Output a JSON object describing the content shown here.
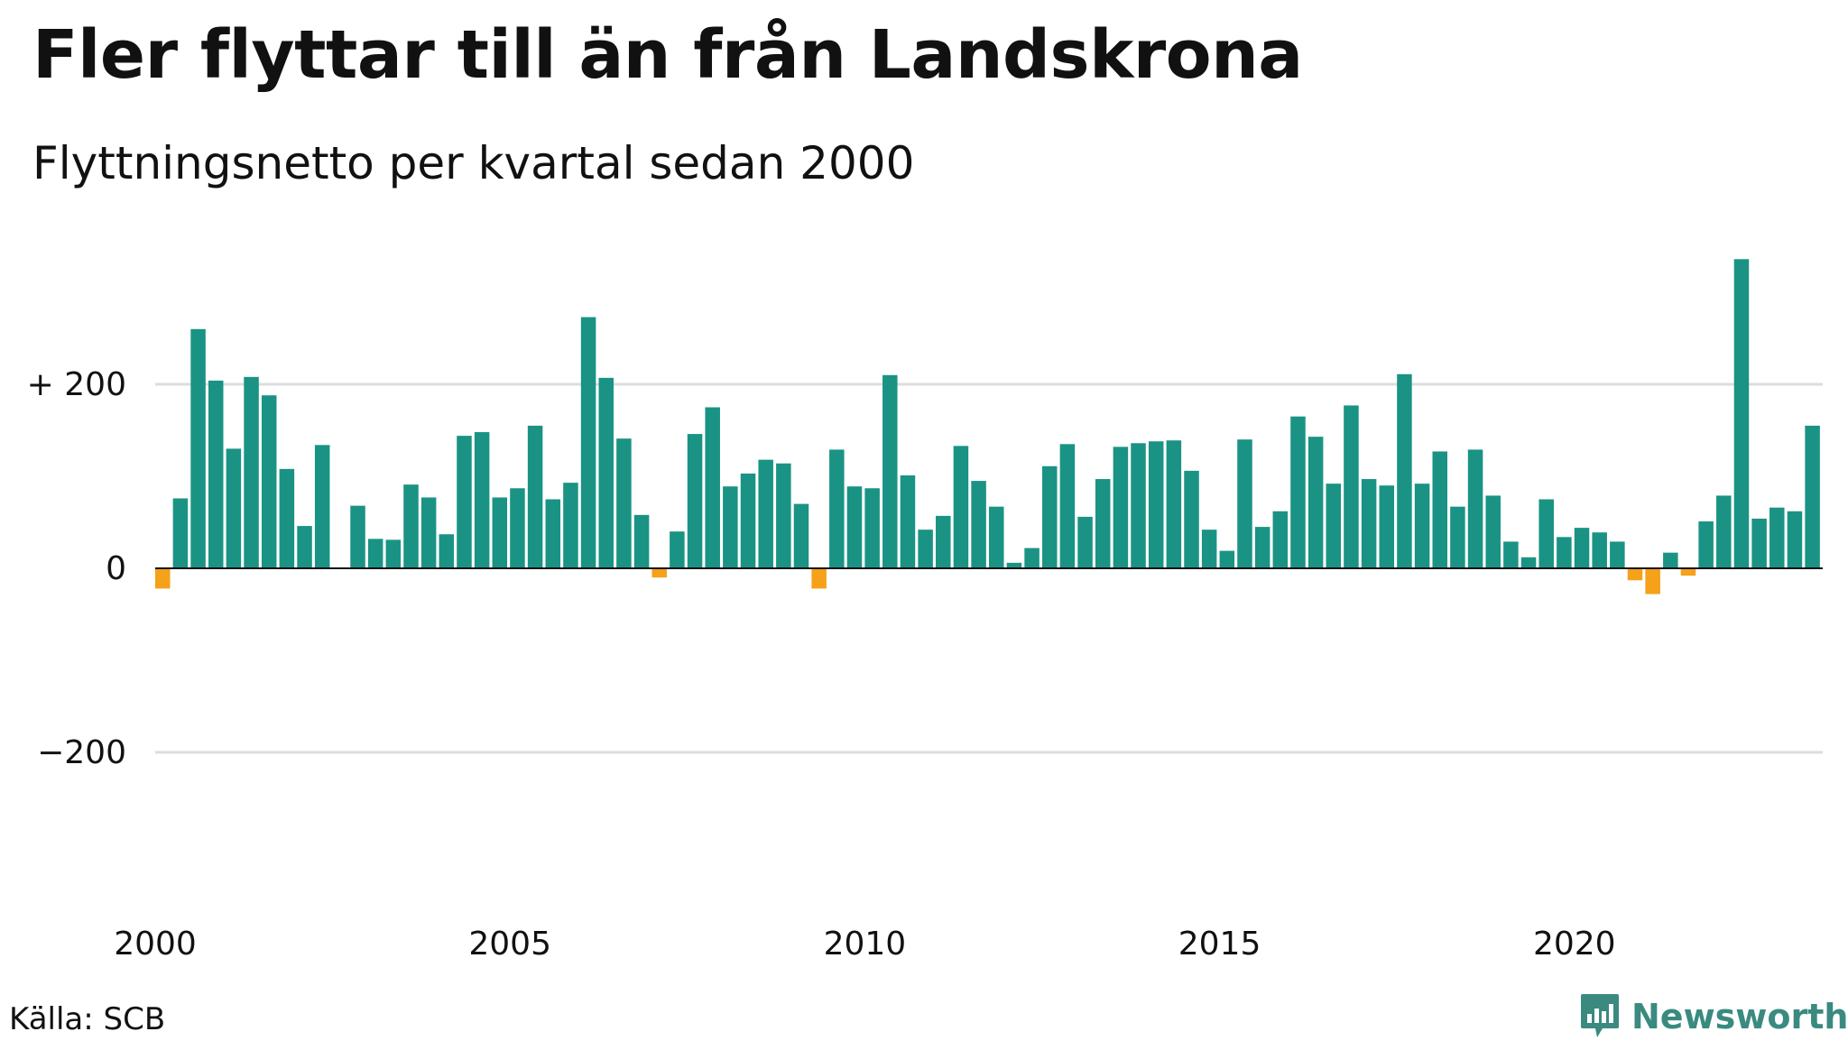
{
  "title": "Fler flyttar till än från Landskrona",
  "subtitle": "Flyttningsnetto per kvartal sedan 2000",
  "source": "Källa: SCB",
  "brand": "Newsworthy",
  "colors": {
    "positive": "#1a9384",
    "negative": "#f5a11a",
    "grid": "#dddddd",
    "brand": "#3a8a80"
  },
  "chart_data": {
    "type": "bar",
    "title": "Fler flyttar till än från Landskrona",
    "subtitle": "Flyttningsnetto per kvartal sedan 2000",
    "xlabel": "",
    "ylabel": "",
    "ylim": [
      -400,
      350
    ],
    "y_ticks": [
      200,
      0,
      -200
    ],
    "y_tick_labels": [
      "+ 200",
      "0",
      "−200"
    ],
    "x_ticks": [
      "2000",
      "2005",
      "2010",
      "2015",
      "2020"
    ],
    "grid": true,
    "legend": "none",
    "start_quarter": "2000 Q1",
    "values": [
      -22,
      76,
      260,
      204,
      130,
      208,
      188,
      108,
      46,
      134,
      1,
      68,
      32,
      31,
      91,
      77,
      37,
      144,
      148,
      77,
      87,
      155,
      75,
      93,
      273,
      207,
      141,
      58,
      -10,
      40,
      146,
      175,
      89,
      103,
      118,
      114,
      70,
      -22,
      129,
      89,
      87,
      210,
      101,
      42,
      57,
      133,
      95,
      67,
      6,
      22,
      111,
      135,
      56,
      97,
      132,
      136,
      138,
      139,
      106,
      42,
      19,
      140,
      45,
      62,
      165,
      143,
      92,
      177,
      97,
      90,
      211,
      92,
      127,
      67,
      129,
      79,
      29,
      12,
      75,
      34,
      44,
      39,
      29,
      -13,
      -28,
      17,
      -8,
      51,
      79,
      336,
      54,
      66,
      62,
      155
    ]
  }
}
